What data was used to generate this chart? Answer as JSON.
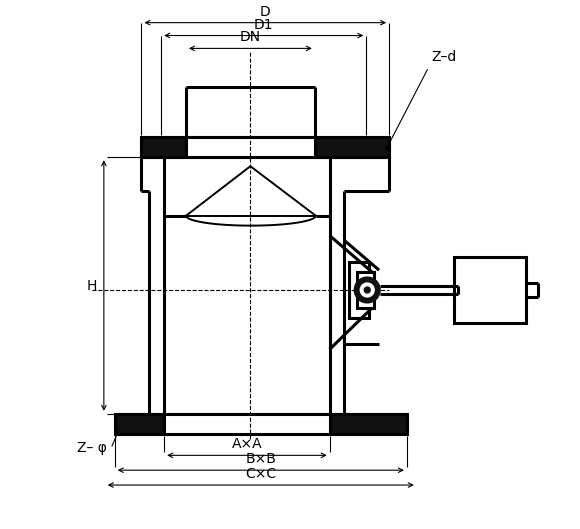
{
  "bg_color": "#ffffff",
  "line_color": "#000000",
  "labels": {
    "D": "D",
    "D1": "D1",
    "DN": "DN",
    "Zd": "Z–d",
    "H": "H",
    "Zphi": "Z– φ",
    "AxA": "A×A",
    "BxB": "B×B",
    "CxC": "C×C"
  },
  "font_size": 10,
  "lw_main": 2.2,
  "lw_thin": 0.8,
  "lw_med": 1.4
}
